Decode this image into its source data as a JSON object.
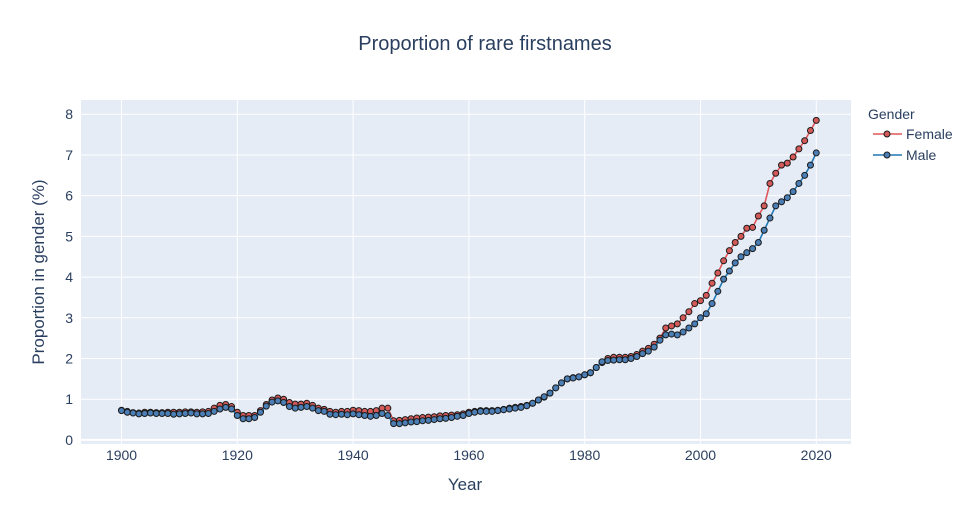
{
  "chart_data": {
    "type": "line",
    "title": "Proportion of rare firstnames",
    "xlabel": "Year",
    "ylabel": "Proportion in gender (%)",
    "xlim": [
      1893,
      2026
    ],
    "ylim": [
      -0.1,
      8.35
    ],
    "x_ticks": [
      1900,
      1920,
      1940,
      1960,
      1980,
      2000,
      2020
    ],
    "y_ticks": [
      0,
      1,
      2,
      3,
      4,
      5,
      6,
      7,
      8
    ],
    "grid": true,
    "legend_position": "top-right",
    "legend_title": "Gender",
    "x_start": 1900,
    "series": [
      {
        "name": "Female",
        "line_color": "#e15759",
        "marker_color": "#d45a5a",
        "values": [
          0.73,
          0.7,
          0.67,
          0.66,
          0.68,
          0.68,
          0.67,
          0.67,
          0.68,
          0.68,
          0.68,
          0.69,
          0.69,
          0.68,
          0.69,
          0.7,
          0.78,
          0.85,
          0.87,
          0.82,
          0.68,
          0.6,
          0.6,
          0.6,
          0.72,
          0.87,
          0.98,
          1.03,
          1.0,
          0.92,
          0.88,
          0.88,
          0.9,
          0.85,
          0.78,
          0.75,
          0.7,
          0.68,
          0.7,
          0.7,
          0.73,
          0.72,
          0.7,
          0.7,
          0.72,
          0.78,
          0.78,
          0.47,
          0.48,
          0.5,
          0.52,
          0.54,
          0.55,
          0.56,
          0.57,
          0.59,
          0.6,
          0.61,
          0.62,
          0.64,
          0.68,
          0.7,
          0.72,
          0.72,
          0.72,
          0.73,
          0.75,
          0.78,
          0.8,
          0.82,
          0.85,
          0.9,
          0.98,
          1.05,
          1.15,
          1.28,
          1.4,
          1.5,
          1.53,
          1.55,
          1.6,
          1.65,
          1.78,
          1.9,
          2.0,
          2.03,
          2.03,
          2.03,
          2.05,
          2.1,
          2.18,
          2.25,
          2.35,
          2.5,
          2.75,
          2.8,
          2.85,
          3.0,
          3.15,
          3.35,
          3.42,
          3.55,
          3.85,
          4.1,
          4.4,
          4.65,
          4.85,
          5.0,
          5.2,
          5.22,
          5.5,
          5.75,
          6.3,
          6.55,
          6.75,
          6.8,
          6.95,
          7.15,
          7.35,
          7.6,
          7.85
        ]
      },
      {
        "name": "Male",
        "line_color": "#1f77b4",
        "marker_color": "#4a7eb5",
        "values": [
          0.72,
          0.68,
          0.66,
          0.64,
          0.65,
          0.66,
          0.65,
          0.65,
          0.65,
          0.63,
          0.64,
          0.65,
          0.66,
          0.64,
          0.64,
          0.65,
          0.7,
          0.76,
          0.8,
          0.76,
          0.6,
          0.52,
          0.52,
          0.55,
          0.68,
          0.83,
          0.93,
          0.96,
          0.92,
          0.82,
          0.78,
          0.8,
          0.82,
          0.78,
          0.72,
          0.7,
          0.63,
          0.62,
          0.63,
          0.62,
          0.64,
          0.62,
          0.6,
          0.58,
          0.6,
          0.65,
          0.6,
          0.4,
          0.4,
          0.42,
          0.44,
          0.45,
          0.47,
          0.48,
          0.5,
          0.52,
          0.53,
          0.55,
          0.58,
          0.6,
          0.65,
          0.68,
          0.7,
          0.7,
          0.7,
          0.72,
          0.74,
          0.76,
          0.78,
          0.8,
          0.84,
          0.9,
          0.98,
          1.06,
          1.15,
          1.28,
          1.4,
          1.5,
          1.52,
          1.55,
          1.6,
          1.65,
          1.78,
          1.92,
          1.95,
          1.96,
          1.97,
          1.97,
          2.0,
          2.05,
          2.12,
          2.18,
          2.28,
          2.45,
          2.58,
          2.6,
          2.58,
          2.65,
          2.75,
          2.85,
          3.0,
          3.1,
          3.35,
          3.65,
          3.95,
          4.15,
          4.35,
          4.5,
          4.6,
          4.7,
          4.85,
          5.15,
          5.45,
          5.75,
          5.85,
          5.95,
          6.1,
          6.3,
          6.5,
          6.75,
          7.05
        ]
      }
    ]
  }
}
